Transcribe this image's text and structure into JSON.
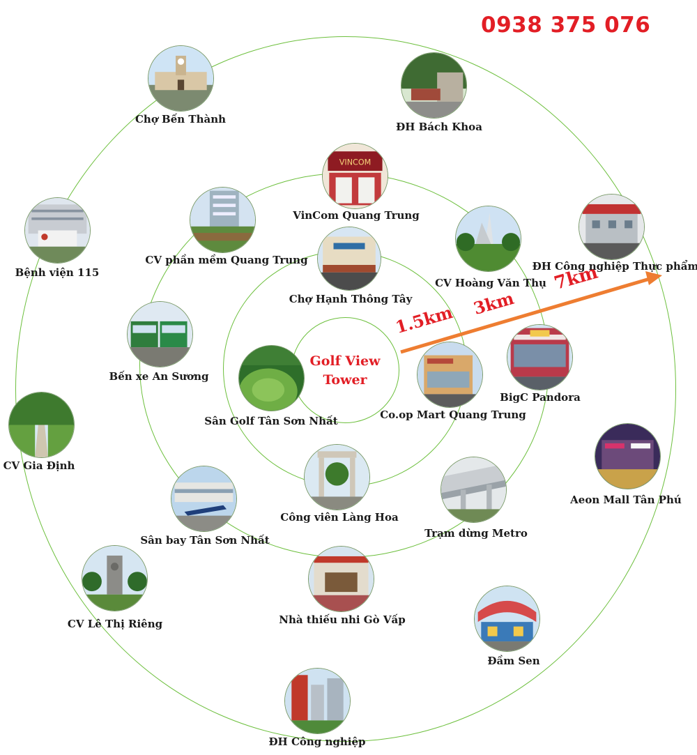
{
  "phone": "0938 375 076",
  "center": {
    "line1": "Golf View",
    "line2": "Tower"
  },
  "distances": {
    "d1": "1.5km",
    "d2": "3km",
    "d3": "7km"
  },
  "colors": {
    "accent": "#e21e25",
    "ring": "#6cbf3c",
    "arrow": "#ee7d31"
  },
  "locations": [
    {
      "label": "Chợ Bến Thành",
      "icon": "market-photo"
    },
    {
      "label": "ĐH Bách Khoa",
      "icon": "university-photo"
    },
    {
      "label": "VinCom Quang Trung",
      "icon": "mall-photo"
    },
    {
      "label": "CV phần mềm Quang Trung",
      "icon": "office-photo"
    },
    {
      "label": "CV Hoàng Văn Thụ",
      "icon": "park-photo"
    },
    {
      "label": "ĐH Công nghiệp Thực phẩm",
      "icon": "university-photo"
    },
    {
      "label": "Bệnh viện 115",
      "icon": "hospital-photo"
    },
    {
      "label": "Chợ Hạnh Thông Tây",
      "icon": "market-photo"
    },
    {
      "label": "Bến xe An Sương",
      "icon": "bus-photo"
    },
    {
      "label": "Sân Golf Tân Sơn Nhất",
      "icon": "golf-photo"
    },
    {
      "label": "Co.op Mart Quang Trung",
      "icon": "store-photo"
    },
    {
      "label": "BigC Pandora",
      "icon": "store-photo"
    },
    {
      "label": "CV Gia Định",
      "icon": "park-photo"
    },
    {
      "label": "Công viên Làng Hoa",
      "icon": "park-photo"
    },
    {
      "label": "Trạm dừng Metro",
      "icon": "metro-photo"
    },
    {
      "label": "Aeon Mall Tân Phú",
      "icon": "mall-photo"
    },
    {
      "label": "Sân bay Tân Sơn Nhất",
      "icon": "airport-photo"
    },
    {
      "label": "CV Lê Thị Riêng",
      "icon": "park-photo"
    },
    {
      "label": "Nhà thiếu nhi Gò Vấp",
      "icon": "building-photo"
    },
    {
      "label": "Đầm Sen",
      "icon": "amusement-photo"
    },
    {
      "label": "ĐH Công nghiệp",
      "icon": "university-photo"
    }
  ]
}
